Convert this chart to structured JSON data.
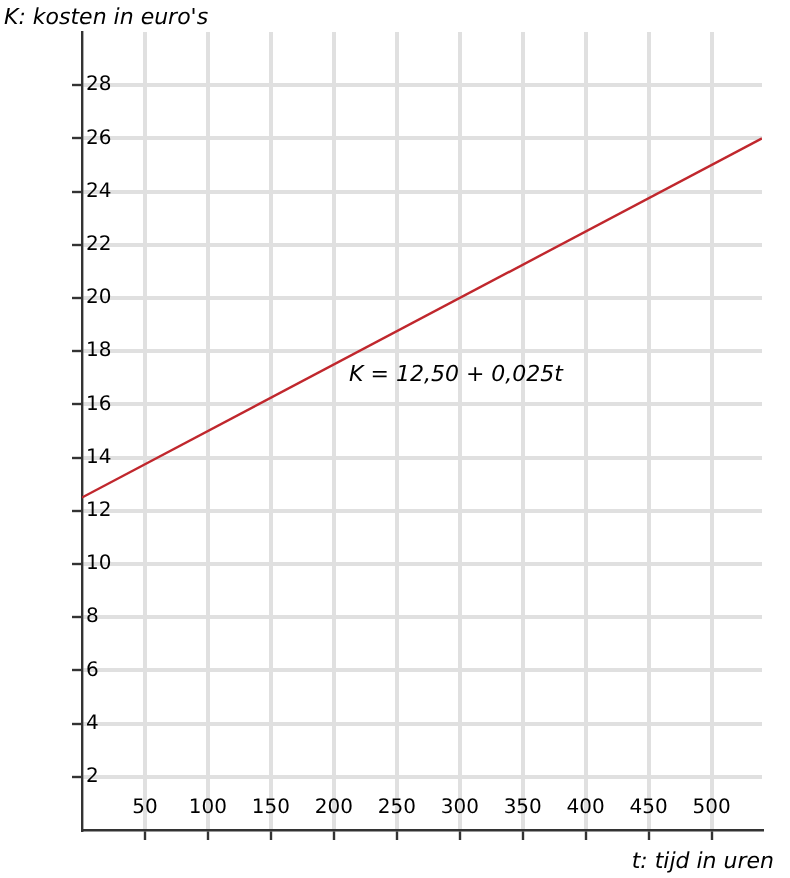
{
  "chart_data": {
    "type": "line",
    "xlabel": "t: tijd in uren",
    "ylabel": "K: kosten in euro's",
    "x": [
      0,
      540
    ],
    "series": [
      {
        "color": "#c0272d",
        "values": [
          12.5,
          26
        ]
      }
    ],
    "xlim": [
      0,
      540
    ],
    "xticks": [
      50,
      100,
      150,
      200,
      250,
      300,
      350,
      400,
      450,
      500
    ],
    "ylim": [
      0,
      30
    ],
    "yticks": [
      2,
      4,
      6,
      8,
      10,
      12,
      14,
      16,
      18,
      20,
      22,
      24,
      26,
      28
    ],
    "annotations": [
      "K = 12,50 + 0,025t"
    ],
    "grid": true,
    "marker": "none",
    "line_style": "solid",
    "legend": false
  }
}
